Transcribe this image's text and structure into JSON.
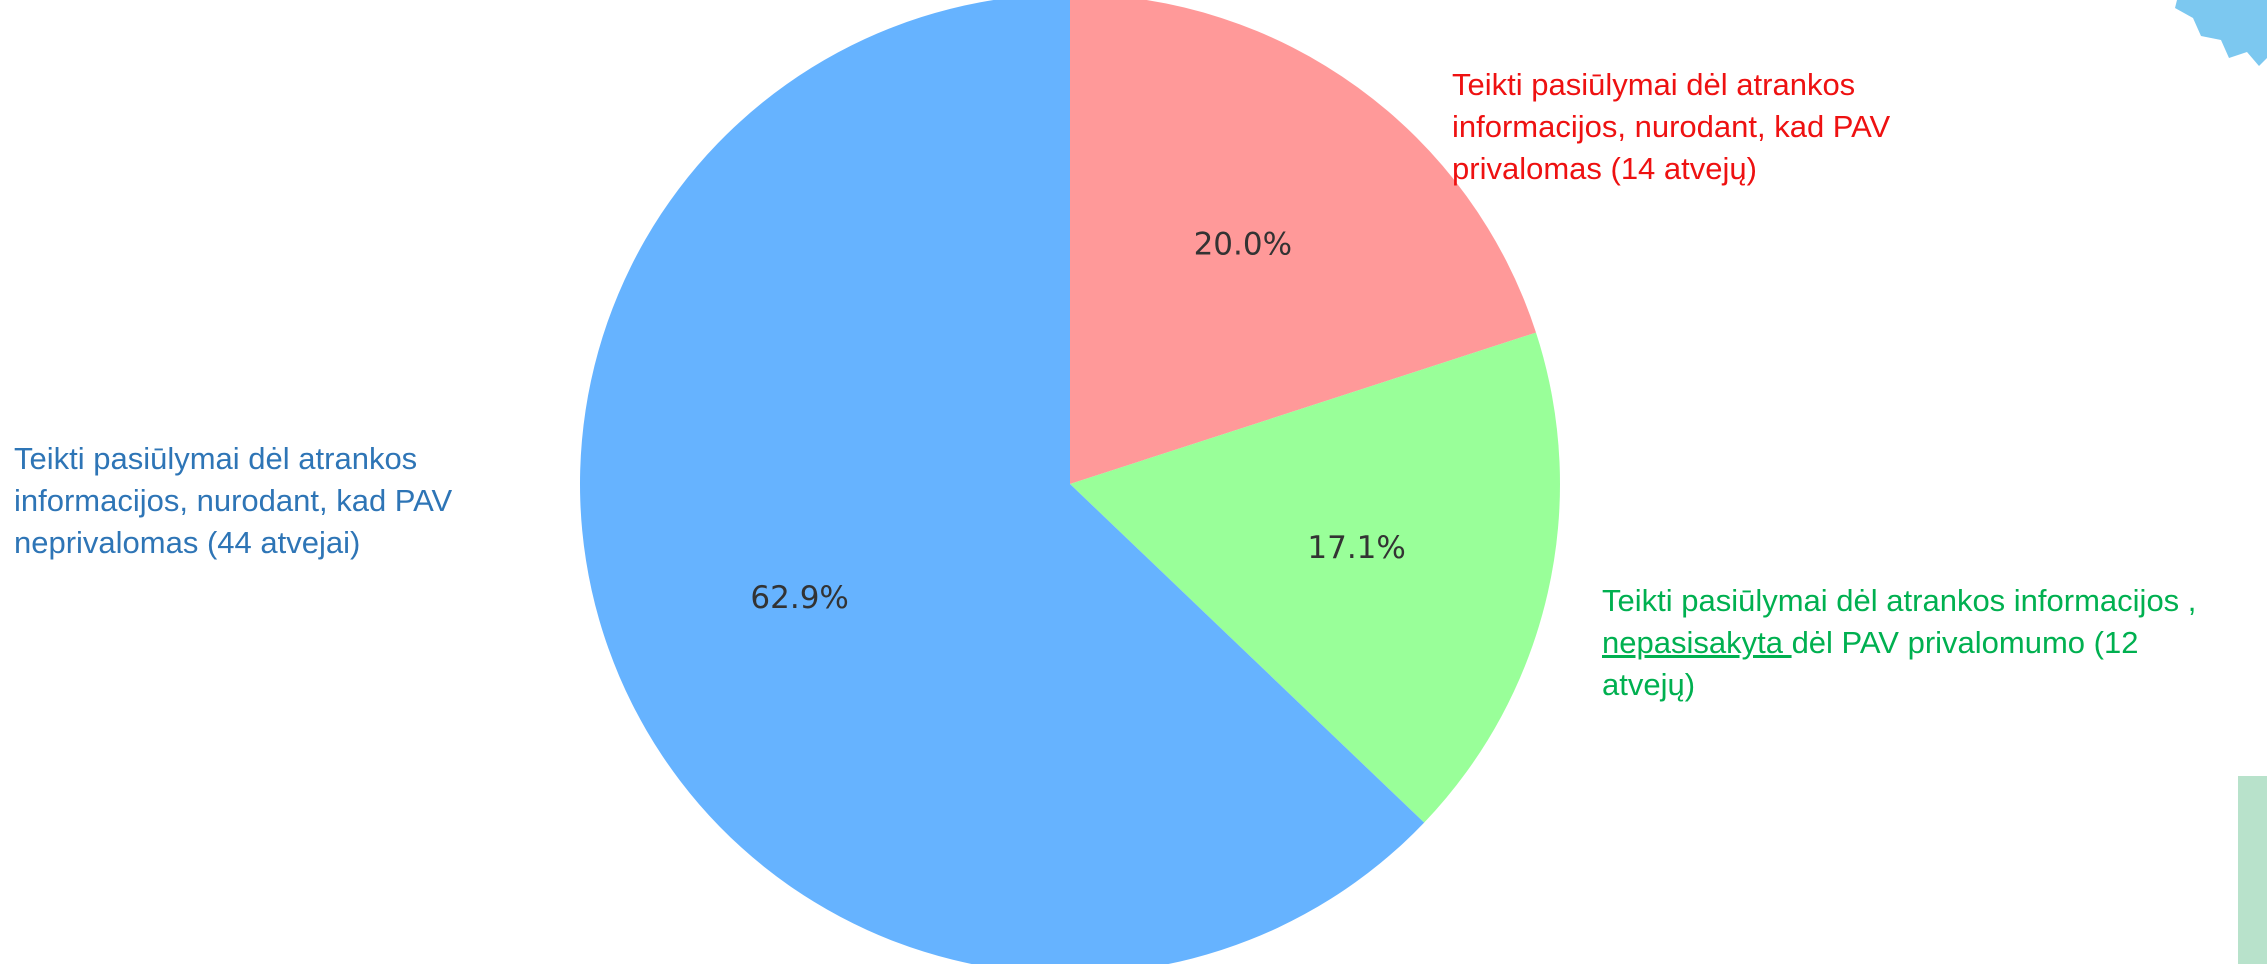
{
  "chart_data": {
    "type": "pie",
    "slices": [
      {
        "label": "Teikti pasiūlymai dėl atrankos informacijos, nurodant, kad PAV privalomas (14 atvejų)",
        "value": 14,
        "percent_label": "20.0%",
        "color": "#ff9999"
      },
      {
        "label": "Teikti pasiūlymai dėl atrankos informacijos , nepasisakyta dėl PAV privalomumo (12 atvejų)",
        "value": 12,
        "percent_label": "17.1%",
        "color": "#99ff99"
      },
      {
        "label": "Teikti pasiūlymai dėl atrankos informacijos, nurodant, kad PAV neprivalomas (44 atvejai)",
        "value": 44,
        "percent_label": "62.9%",
        "color": "#66b3ff"
      }
    ],
    "start_angle": "90° (12 o'clock)",
    "direction": "clockwise"
  },
  "annotations": {
    "red": {
      "color": "#ee1111",
      "lines": [
        "Teikti pasiūlymai dėl atrankos",
        "informacijos, nurodant, kad PAV",
        "privalomas (14 atvejų)"
      ]
    },
    "blue": {
      "color": "#2e75b6",
      "lines": [
        "Teikti pasiūlymai dėl atrankos",
        "informacijos, nurodant, kad PAV",
        "neprivalomas (44 atvejai)"
      ]
    },
    "green": {
      "color": "#00b050",
      "line1": "Teikti pasiūlymai dėl atrankos informacijos ,",
      "line2_underlined": "nepasisakyta ",
      "line2_rest": "dėl PAV privalomumo (12",
      "line3": "atvejų)"
    }
  },
  "decorations": {
    "top_right_shape_color": "#7cc8f0",
    "bottom_right_bar_color": "#b8e2cb"
  }
}
